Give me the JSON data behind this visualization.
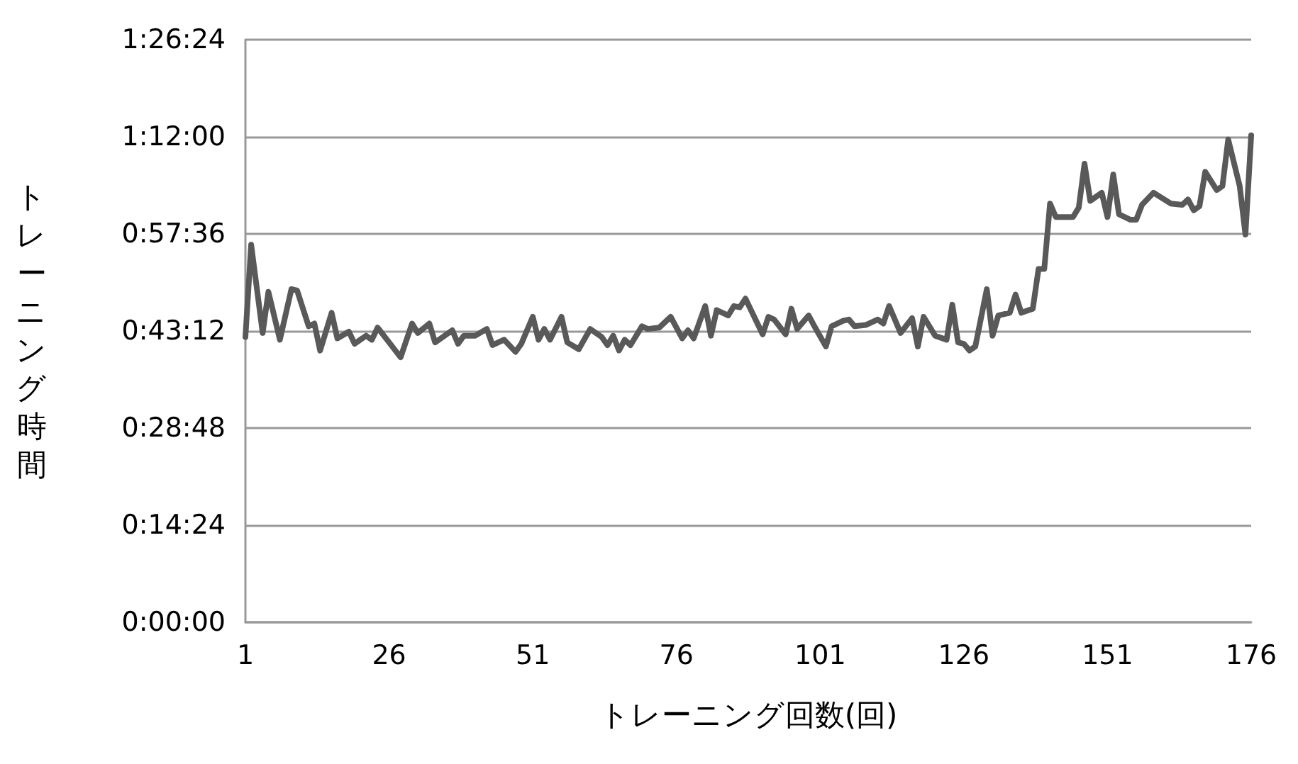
{
  "chart_data": {
    "type": "line",
    "xlabel": "トレーニング回数(回)",
    "ylabel": "トレーニング時間",
    "x": [
      1,
      2,
      4,
      5,
      7,
      9,
      10,
      12,
      13,
      14,
      16,
      17,
      19,
      20,
      22,
      23,
      24,
      26,
      28,
      30,
      31,
      33,
      34,
      37,
      38,
      39,
      41,
      43,
      44,
      46,
      48,
      49,
      51,
      52,
      53,
      54,
      56,
      57,
      59,
      61,
      63,
      64,
      65,
      66,
      67,
      68,
      70,
      71,
      73,
      75,
      77,
      78,
      79,
      81,
      82,
      83,
      85,
      86,
      87,
      88,
      91,
      92,
      93,
      95,
      96,
      97,
      99,
      100,
      102,
      103,
      105,
      106,
      107,
      109,
      111,
      112,
      113,
      115,
      117,
      118,
      119,
      121,
      123,
      124,
      125,
      126,
      127,
      128,
      130,
      131,
      132,
      134,
      135,
      136,
      138,
      139,
      140,
      141,
      142,
      145,
      146,
      147,
      148,
      150,
      151,
      152,
      153,
      155,
      156,
      157,
      159,
      162,
      164,
      165,
      166,
      167,
      168,
      170,
      171,
      172,
      174,
      175,
      176
    ],
    "series": [
      {
        "color": "#595959",
        "values": [
          42.3,
          56.0,
          42.9,
          49.0,
          41.9,
          49.4,
          49.2,
          43.9,
          44.3,
          40.3,
          45.9,
          42.1,
          43.1,
          41.3,
          42.5,
          41.9,
          43.7,
          41.5,
          39.3,
          44.3,
          42.9,
          44.3,
          41.5,
          43.3,
          41.3,
          42.5,
          42.5,
          43.5,
          41.1,
          41.9,
          40.1,
          41.3,
          45.3,
          41.9,
          43.5,
          41.9,
          45.3,
          41.5,
          40.5,
          43.5,
          42.3,
          41.1,
          42.5,
          40.3,
          41.9,
          41.1,
          43.9,
          43.5,
          43.7,
          45.3,
          42.1,
          43.3,
          42.1,
          46.9,
          42.5,
          46.3,
          45.5,
          46.9,
          46.7,
          48.0,
          42.7,
          45.3,
          44.9,
          42.7,
          46.5,
          43.5,
          45.5,
          43.9,
          40.9,
          43.9,
          44.7,
          44.9,
          43.9,
          44.1,
          44.9,
          44.3,
          46.9,
          42.9,
          45.1,
          40.9,
          45.3,
          42.5,
          41.9,
          47.1,
          41.5,
          41.3,
          40.3,
          40.9,
          49.4,
          42.5,
          45.5,
          45.9,
          48.6,
          45.9,
          46.5,
          52.4,
          52.4,
          62.1,
          60.1,
          60.1,
          61.5,
          68.0,
          62.5,
          63.7,
          60.1,
          66.4,
          60.5,
          59.7,
          59.7,
          61.9,
          63.7,
          62.1,
          61.9,
          62.7,
          61.1,
          61.7,
          66.8,
          64.1,
          64.7,
          71.6,
          64.7,
          57.5,
          72.2
        ]
      }
    ],
    "xlim": [
      1,
      176
    ],
    "xticks": [
      1,
      26,
      51,
      76,
      101,
      126,
      151,
      176
    ],
    "ylim": [
      0,
      86.4
    ],
    "yticks": [
      {
        "value": 0,
        "label": "0:00:00"
      },
      {
        "value": 14.4,
        "label": "0:14:24"
      },
      {
        "value": 28.8,
        "label": "0:28:48"
      },
      {
        "value": 43.2,
        "label": "0:43:12"
      },
      {
        "value": 57.6,
        "label": "0:57:36"
      },
      {
        "value": 72,
        "label": "1:12:00"
      },
      {
        "value": 86.4,
        "label": "1:26:24"
      }
    ],
    "grid": "y",
    "marker": "none",
    "line_style": "solid"
  }
}
